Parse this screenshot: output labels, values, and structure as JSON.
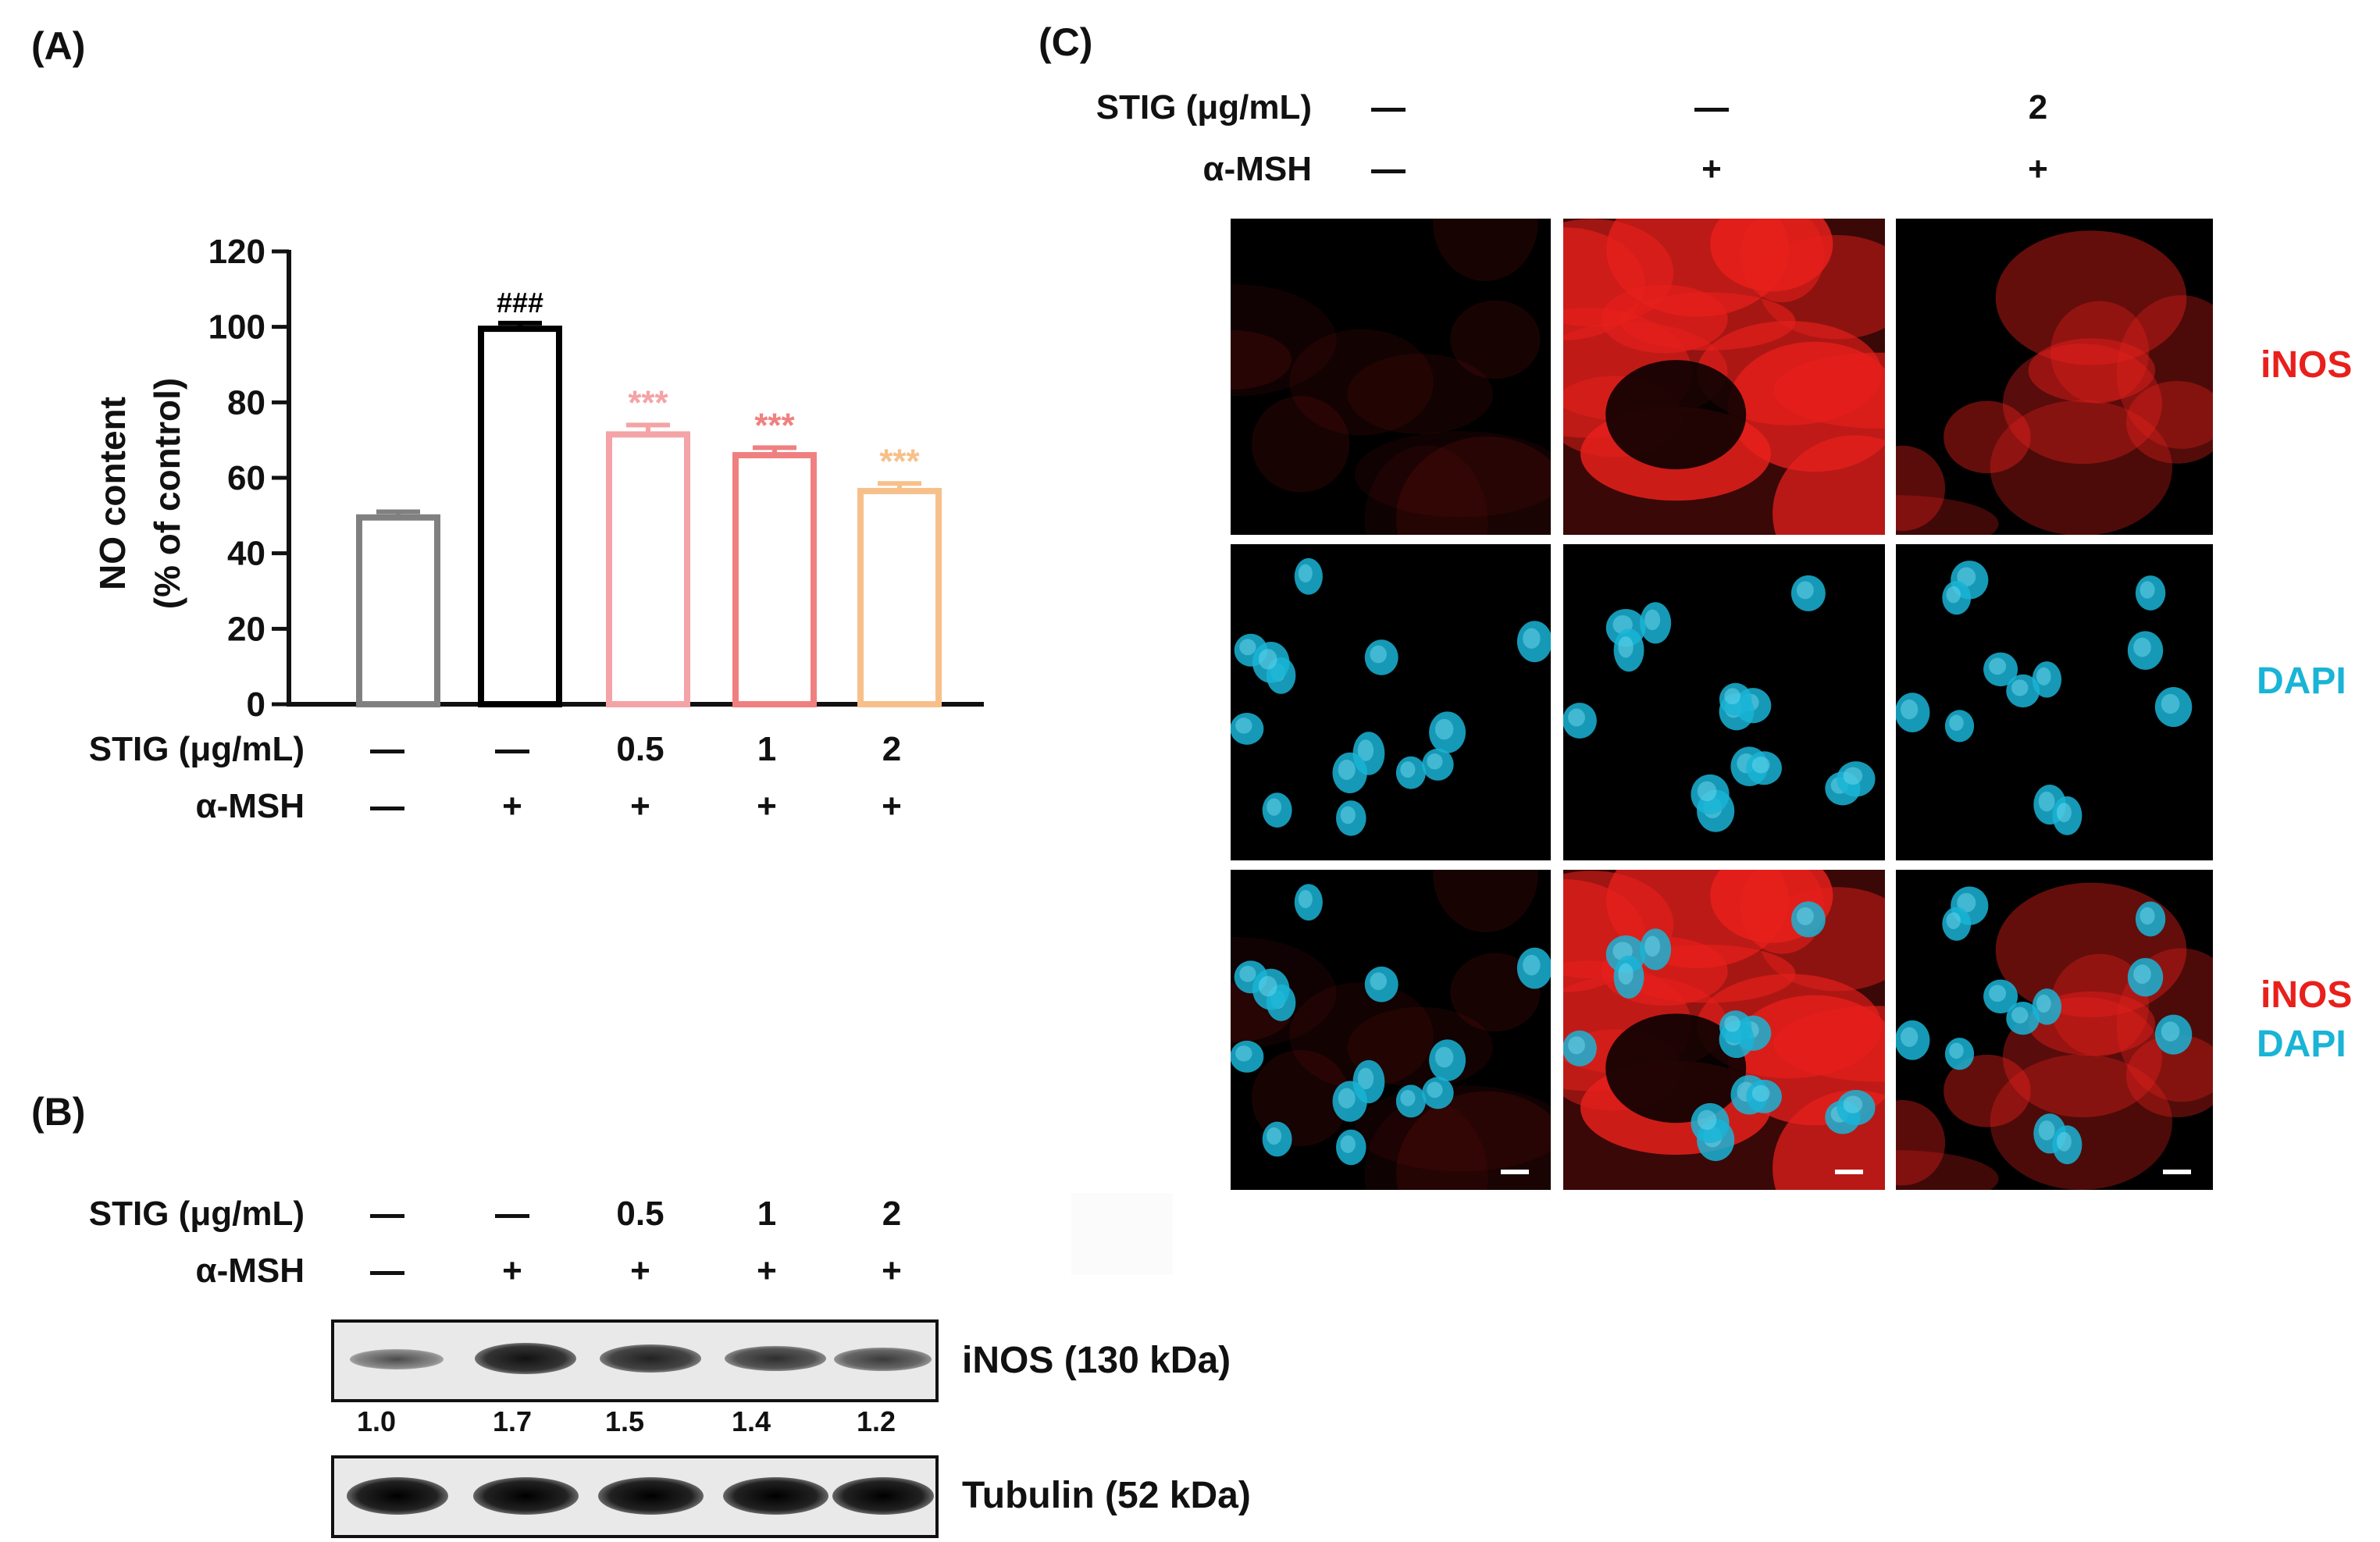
{
  "panelA": {
    "label": "(A)",
    "stig_label": "STIG (μg/mL)",
    "msh_label": "α-MSH",
    "stig_values": [
      "—",
      "—",
      "0.5",
      "1",
      "2"
    ],
    "msh_values": [
      "—",
      "+",
      "+",
      "+",
      "+"
    ]
  },
  "panelB": {
    "label": "(B)",
    "stig_label": "STIG (μg/mL)",
    "msh_label": "α-MSH",
    "stig_values": [
      "—",
      "—",
      "0.5",
      "1",
      "2"
    ],
    "msh_values": [
      "—",
      "+",
      "+",
      "+",
      "+"
    ],
    "inos_label": "iNOS (130 kDa)",
    "tubulin_label": "Tubulin (52 kDa)",
    "quant": [
      "1.0",
      "1.7",
      "1.5",
      "1.4",
      "1.2"
    ]
  },
  "panelC": {
    "label": "(C)",
    "stig_label": "STIG (μg/mL)",
    "msh_label": "α-MSH",
    "stig_values": [
      "—",
      "—",
      "2"
    ],
    "msh_values": [
      "—",
      "+",
      "+"
    ],
    "row_labels": {
      "inos": "iNOS",
      "dapi": "DAPI",
      "merge_inos": "iNOS",
      "merge_dapi": "DAPI"
    },
    "colors": {
      "inos": "#e8201c",
      "dapi": "#19b4d6"
    }
  },
  "chart_data": {
    "type": "bar",
    "title": "",
    "xlabel": "",
    "ylabel": "NO content (% of control)",
    "ylabel_lines": [
      "NO content",
      "(% of control)"
    ],
    "ylim": [
      0,
      120
    ],
    "yticks": [
      "0",
      "20",
      "40",
      "60",
      "80",
      "100",
      "120"
    ],
    "categories": [
      "—/—",
      "—/+",
      "0.5/+",
      "1/+",
      "2/+"
    ],
    "values": [
      49.5,
      99.5,
      71.5,
      66,
      56.5
    ],
    "errors": [
      1.5,
      1.5,
      2.5,
      2,
      2
    ],
    "colors": [
      "#808080",
      "#000000",
      "#f4a3a6",
      "#f08080",
      "#f7c08a"
    ],
    "annotations": [
      "",
      "###",
      "***",
      "***",
      "***"
    ],
    "annotation_colors": [
      "#000000",
      "#000000",
      "#f4a3a6",
      "#f08080",
      "#f7c08a"
    ]
  }
}
